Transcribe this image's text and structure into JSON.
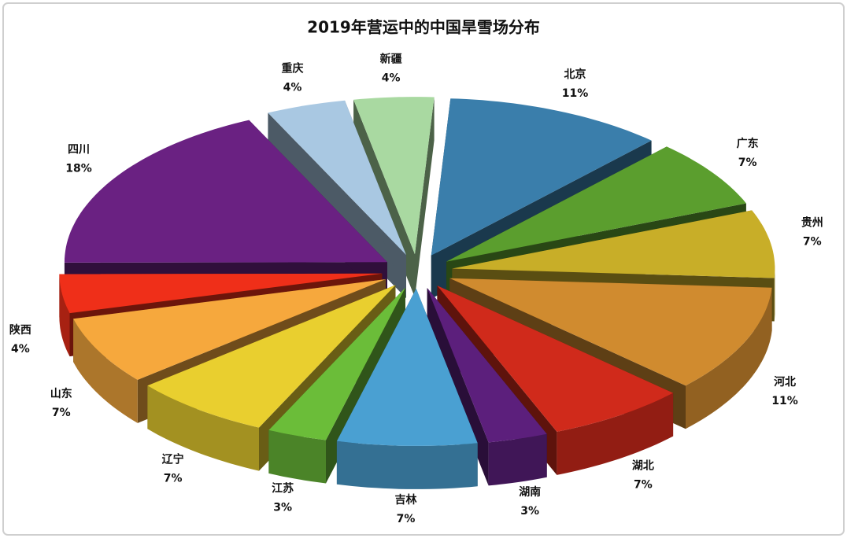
{
  "chart_data": {
    "type": "pie",
    "title": "2019年营运中的中国旱雪场分布",
    "categories": [
      "北京",
      "广东",
      "贵州",
      "河北",
      "湖北",
      "湖南",
      "吉林",
      "江苏",
      "辽宁",
      "山东",
      "陕西",
      "四川",
      "重庆",
      "新疆"
    ],
    "values": [
      11,
      7,
      7,
      11,
      7,
      3,
      7,
      3,
      7,
      7,
      4,
      18,
      4,
      4
    ],
    "value_labels": [
      "11%",
      "7%",
      "7%",
      "11%",
      "7%",
      "3%",
      "7%",
      "3%",
      "7%",
      "7%",
      "4%",
      "18%",
      "4%",
      "4%"
    ],
    "colors": [
      "#3a7eab",
      "#5b9e2e",
      "#c8ae28",
      "#d08b2f",
      "#d02a1b",
      "#5c1f7c",
      "#4aa0d2",
      "#6bbd39",
      "#e9cf2f",
      "#f6a83d",
      "#ef2f19",
      "#6a2182",
      "#a9c8e2",
      "#a9d9a1"
    ]
  }
}
